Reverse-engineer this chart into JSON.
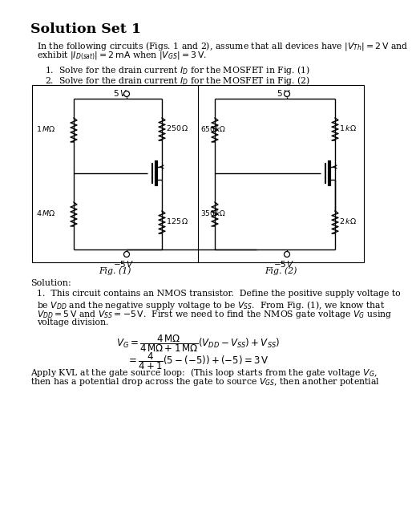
{
  "bg_color": "#ffffff",
  "title": "Solution Set 1",
  "intro1": "In the following circuits (Figs. 1 and 2), assume that all devices have $|V_{Th}| = 2\\,\\mathrm{V}$ and",
  "intro2": "exhibit $|I_{D(sat)}| = 2\\,\\mathrm{mA}$ when $|V_{GS}| = 3\\,\\mathrm{V}$.",
  "item1": "1.  Solve for the drain current $I_D$ for the MOSFET in Fig. (1)",
  "item2": "2.  Solve for the drain current $I_D$ for the MOSFET in Fig. (2)",
  "fig1_label": "Fig. (1)",
  "fig2_label": "Fig. (2)",
  "solution": "Solution:",
  "s1l1": "1.  This circuit contains an NMOS transistor.  Define the positive supply voltage to",
  "s1l2": "be $V_{DD}$ and the negative supply voltage to be $V_{SS}$.  From Fig. (1), we know that",
  "s1l3": "$V_{DD}=5\\,\\mathrm{V}$ and $V_{SS} = -5\\,\\mathrm{V}$.  First we need to find the NMOS gate voltage $V_G$ using",
  "s1l4": "voltage division.",
  "eq1": "$V_G = \\dfrac{4\\,\\mathrm{M}\\Omega}{4\\,\\mathrm{M}\\Omega + 1\\,\\mathrm{M}\\Omega}(V_{DD} - V_{SS}) + V_{SS})$",
  "eq2": "$= \\dfrac{4}{4+1}(5-(-5))+(-5) = 3\\,\\mathrm{V}$",
  "kvl1": "Apply KVL at the gate source loop:  (This loop starts from the gate voltage $V_G$,",
  "kvl2": "then has a potential drop across the gate to source $V_{GS}$, then another potential"
}
